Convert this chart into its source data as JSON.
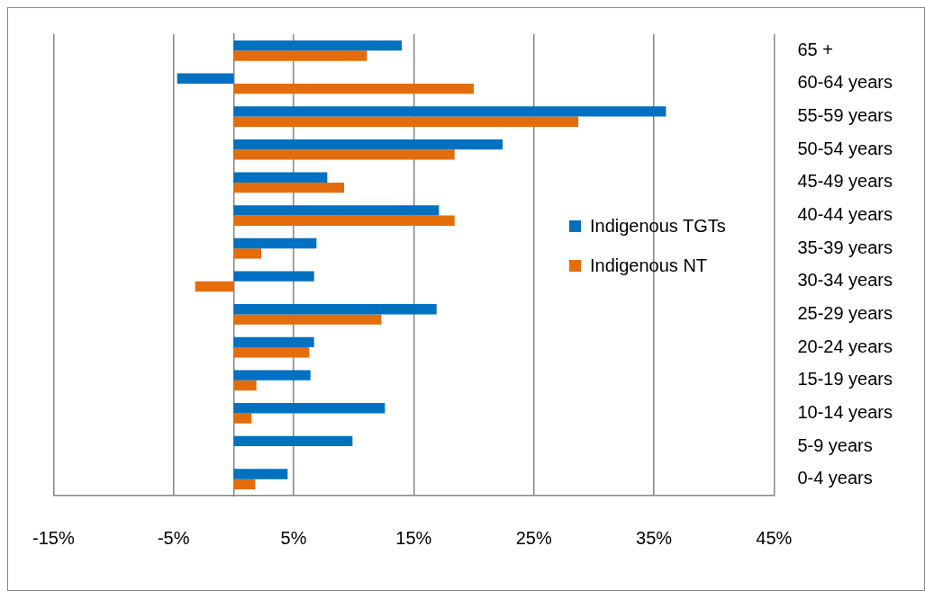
{
  "chart_data": {
    "type": "bar",
    "orientation": "horizontal",
    "categories": [
      "65 +",
      "60-64 years",
      "55-59 years",
      "50-54 years",
      "45-49 years",
      "40-44 years",
      "35-39 years",
      "30-34 years",
      "25-29 years",
      "20-24 years",
      "15-19 years",
      "10-14 years",
      "5-9 years",
      "0-4 years"
    ],
    "series": [
      {
        "name": "Indigenous TGTs",
        "color": "#0070c0",
        "values": [
          14.0,
          -4.7,
          36.0,
          22.4,
          7.8,
          17.1,
          6.9,
          6.7,
          16.9,
          6.7,
          6.4,
          12.6,
          9.9,
          4.5
        ]
      },
      {
        "name": "Indigenous NT",
        "color": "#e46c0a",
        "values": [
          11.1,
          20.0,
          28.7,
          18.4,
          9.2,
          18.4,
          2.3,
          -3.2,
          12.3,
          6.3,
          1.9,
          1.5,
          0,
          1.8
        ]
      }
    ],
    "xlim": [
      -15,
      45
    ],
    "xticks": [
      {
        "value": -15,
        "label": "-15%"
      },
      {
        "value": -5,
        "label": "-5%"
      },
      {
        "value": 5,
        "label": "5%"
      },
      {
        "value": 15,
        "label": "15%"
      },
      {
        "value": 25,
        "label": "25%"
      },
      {
        "value": 35,
        "label": "35%"
      },
      {
        "value": 45,
        "label": "45%"
      }
    ],
    "grid": "x",
    "legend": "right"
  }
}
